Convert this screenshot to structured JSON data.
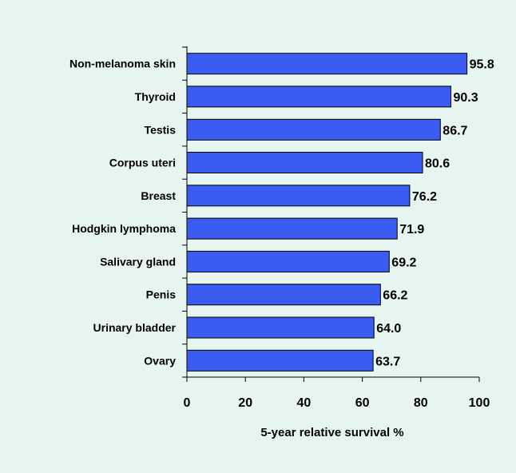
{
  "chart_data": {
    "type": "bar",
    "orientation": "horizontal",
    "categories": [
      "Non-melanoma skin",
      "Thyroid",
      "Testis",
      "Corpus uteri",
      "Breast",
      "Hodgkin lymphoma",
      "Salivary gland",
      "Penis",
      "Urinary bladder",
      "Ovary"
    ],
    "values": [
      95.8,
      90.3,
      86.7,
      80.6,
      76.2,
      71.9,
      69.2,
      66.2,
      64.0,
      63.7
    ],
    "value_labels": [
      "95.8",
      "90.3",
      "86.7",
      "80.6",
      "76.2",
      "71.9",
      "69.2",
      "66.2",
      "64.0",
      "63.7"
    ],
    "xlabel": "5-year relative survival %",
    "ylabel": "",
    "title": "",
    "xlim": [
      0,
      100
    ],
    "xticks": [
      "0",
      "20",
      "40",
      "60",
      "80",
      "100"
    ],
    "grid": false,
    "legend": "none",
    "colors": {
      "background": "#e6f5ef",
      "bar_fill": "#3b5cf0",
      "bar_stroke": "#000000",
      "axis": "#000000"
    }
  }
}
